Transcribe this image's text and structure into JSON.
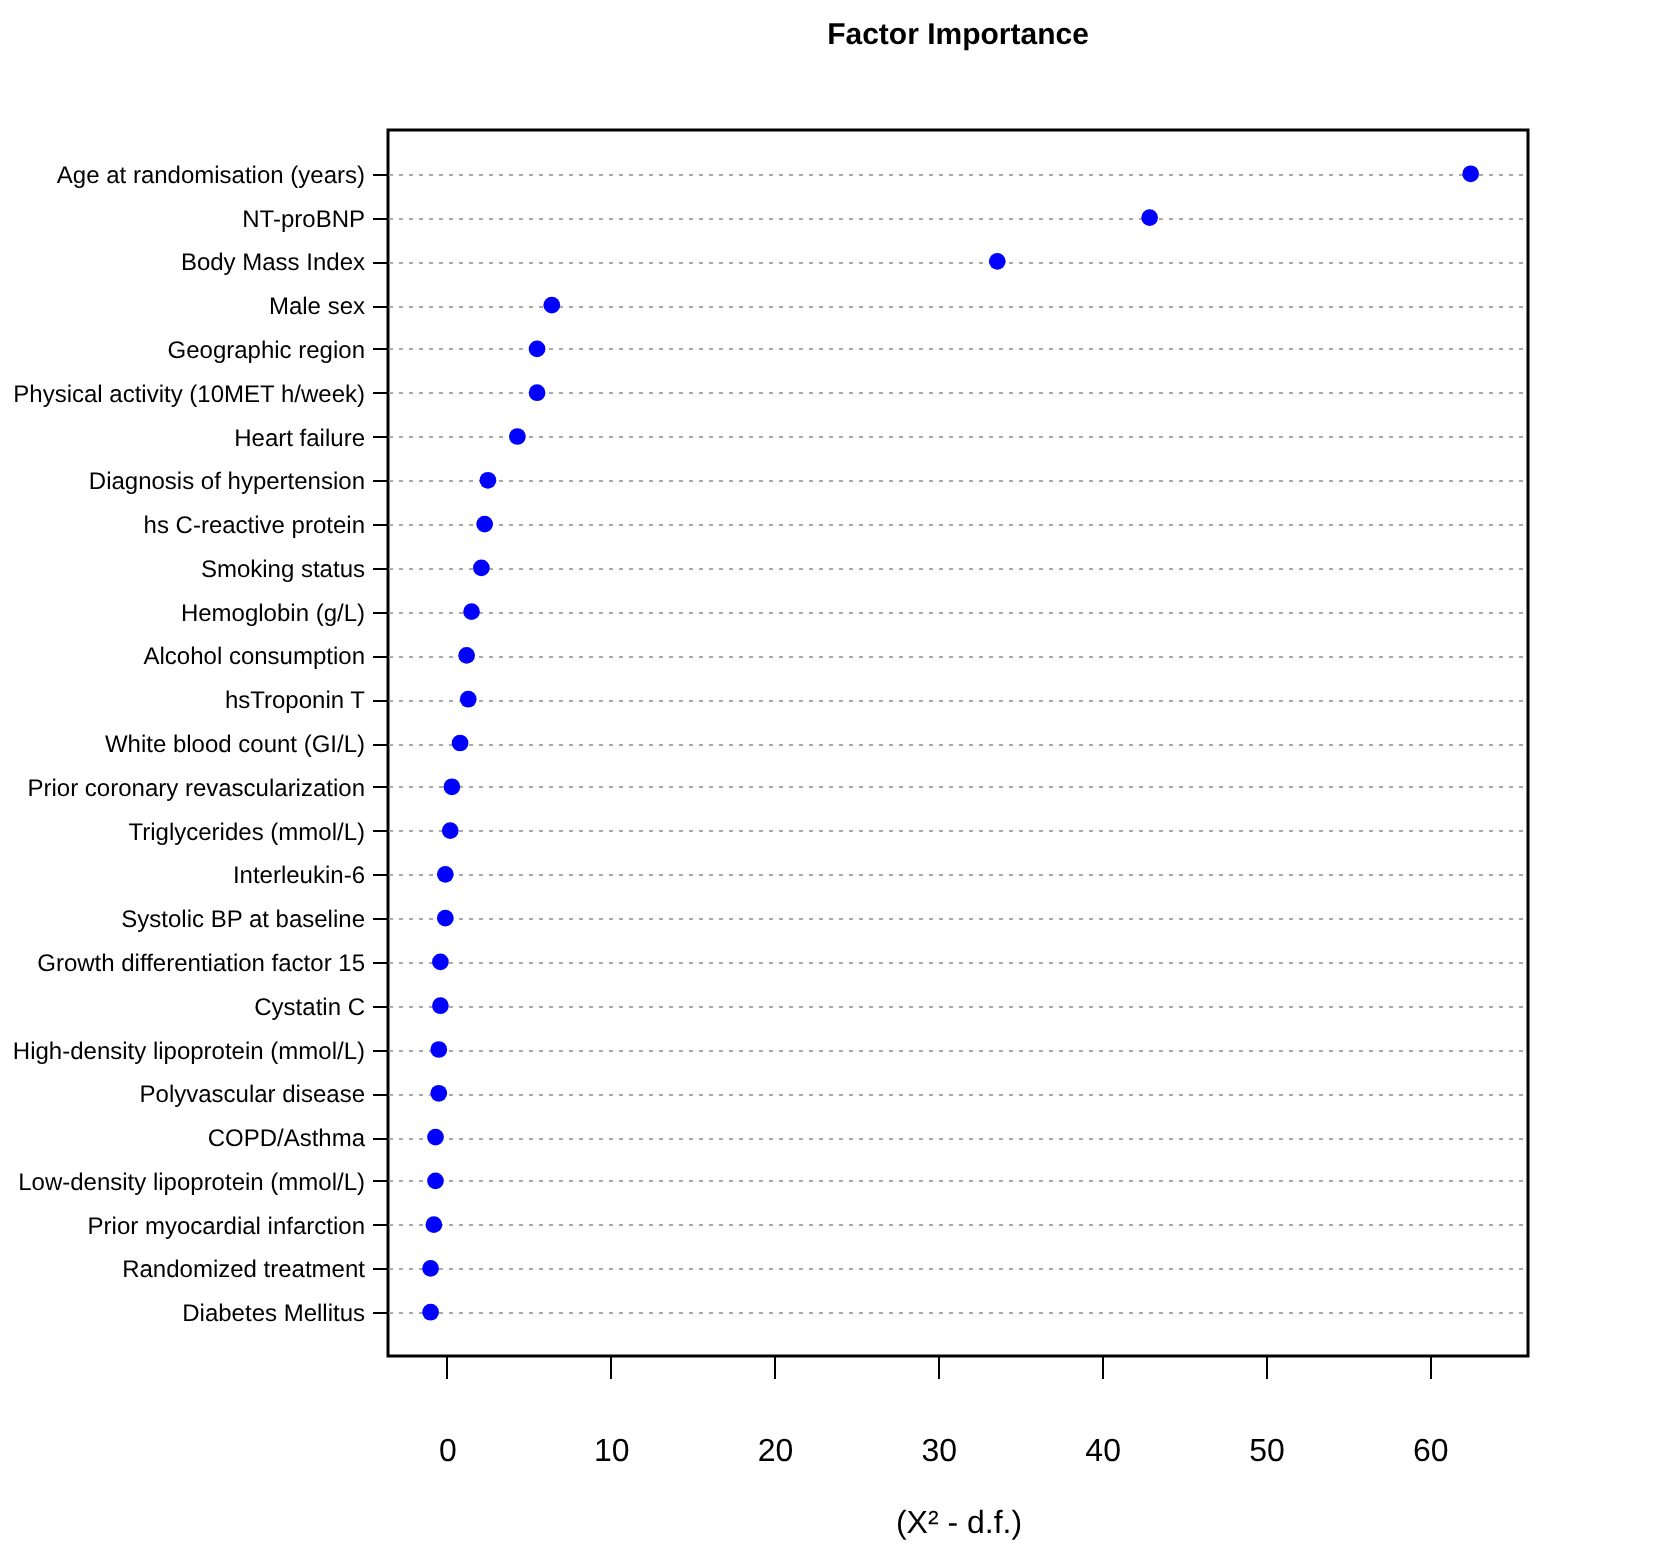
{
  "chart_data": {
    "type": "scatter",
    "title": "Factor Importance",
    "xlabel": "(X² - d.f.)",
    "categories": [
      "Age at randomisation (years)",
      "NT-proBNP",
      "Body Mass Index",
      "Male sex",
      "Geographic region",
      "Physical activity (10MET h/week)",
      "Heart failure",
      "Diagnosis of hypertension",
      "hs C-reactive protein",
      "Smoking status",
      "Hemoglobin (g/L)",
      "Alcohol consumption",
      "hsTroponin T",
      "White blood count (GI/L)",
      "Prior coronary revascularization",
      "Triglycerides (mmol/L)",
      "Interleukin-6",
      "Systolic BP at baseline",
      "Growth differentiation factor 15",
      "Cystatin C",
      "High-density lipoprotein (mmol/L)",
      "Polyvascular disease",
      "COPD/Asthma",
      "Low-density lipoprotein (mmol/L)",
      "Prior myocardial infarction",
      "Randomized treatment",
      "Diabetes Mellitus"
    ],
    "orientation": "horizontal",
    "series": [
      {
        "color": "#0000ff",
        "values": [
          62.5,
          42.9,
          33.6,
          6.4,
          5.5,
          5.5,
          4.3,
          2.5,
          2.3,
          2.1,
          1.5,
          1.2,
          1.3,
          0.8,
          0.3,
          0.2,
          -0.1,
          -0.1,
          -0.4,
          -0.4,
          -0.5,
          -0.5,
          -0.7,
          -0.7,
          -0.8,
          -1.0,
          -1.0
        ]
      }
    ],
    "xlim": [
      -3.6,
      66
    ],
    "xticks": [
      0,
      10,
      20,
      30,
      40,
      50,
      60
    ],
    "grid": "y",
    "marker": "circle"
  }
}
